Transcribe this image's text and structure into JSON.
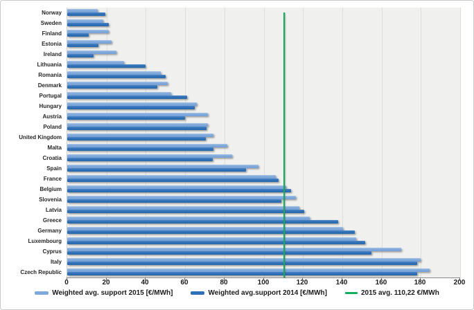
{
  "chart_data": {
    "type": "bar",
    "orientation": "horizontal",
    "title": "",
    "xlabel": "",
    "ylabel": "",
    "xlim": [
      0,
      200
    ],
    "xticks": [
      0,
      20,
      40,
      60,
      80,
      100,
      120,
      140,
      160,
      180,
      200
    ],
    "grid": true,
    "legend_position": "bottom",
    "plot_background": "#f0f0ee",
    "categories": [
      "Norway",
      "Sweden",
      "Finland",
      "Estonia",
      "Ireland",
      "Lithuania",
      "Romania",
      "Denmark",
      "Portugal",
      "Hungary",
      "Austria",
      "Poland",
      "United Kingdom",
      "Malta",
      "Croatia",
      "Spain",
      "France",
      "Belgium",
      "Slovenia",
      "Latvia",
      "Greece",
      "Germany",
      "Luxembourg",
      "Cyprus",
      "Italy",
      "Czech Republic"
    ],
    "series": [
      {
        "name": "Weighted avg. support 2015 [€/MWh]",
        "color": "#7fa9db",
        "values": [
          15.5,
          18.5,
          21,
          22.5,
          25,
          29,
          47.5,
          51,
          53,
          66,
          71.5,
          71.5,
          74.5,
          81.5,
          84,
          97.5,
          106,
          111.5,
          116.5,
          118,
          123.5,
          140.5,
          147,
          170,
          180,
          184.5
        ]
      },
      {
        "name": "Weighted avg.support 2014 [€/MWh]",
        "color": "#2e71b8",
        "values": [
          19.5,
          21,
          11,
          16,
          13.5,
          40,
          50,
          46,
          61,
          65,
          60,
          71,
          70.5,
          74.5,
          74,
          91,
          107.5,
          114,
          109,
          120.5,
          138,
          146.5,
          151.5,
          155,
          178,
          178
        ]
      }
    ],
    "avg_line": {
      "label": "2015 avg. 110,22 €/MWh",
      "value": 110.22,
      "color": "#10ad5e"
    }
  }
}
